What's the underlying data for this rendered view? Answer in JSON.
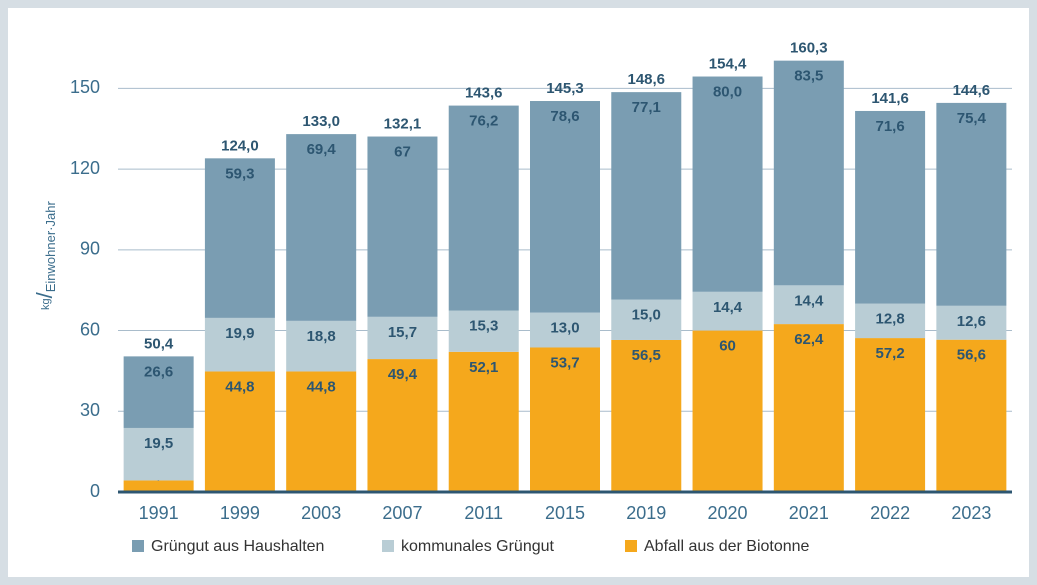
{
  "chart_data": {
    "type": "stacked_bar",
    "y_label": [
      "kg",
      "/",
      "Einwohner·Jahr"
    ],
    "categories": [
      "1991",
      "1999",
      "2003",
      "2007",
      "2011",
      "2015",
      "2019",
      "2020",
      "2021",
      "2022",
      "2023"
    ],
    "series": [
      {
        "name": "Abfall aus der Biotonne",
        "color": "#f5a81c",
        "values": [
          4.3,
          44.8,
          44.8,
          49.4,
          52.1,
          53.7,
          56.5,
          60,
          62.4,
          57.2,
          56.6
        ],
        "value_labels": [
          "4,3",
          "44,8",
          "44,8",
          "49,4",
          "52,1",
          "53,7",
          "56,5",
          "60",
          "62,4",
          "57,2",
          "56,6"
        ]
      },
      {
        "name": "kommunales Grüngut",
        "color": "#b9cdd5",
        "values": [
          19.5,
          19.9,
          18.8,
          15.7,
          15.3,
          13.0,
          15.0,
          14.4,
          14.4,
          12.8,
          12.6
        ],
        "value_labels": [
          "19,5",
          "19,9",
          "18,8",
          "15,7",
          "15,3",
          "13,0",
          "15,0",
          "14,4",
          "14,4",
          "12,8",
          "12,6"
        ]
      },
      {
        "name": "Grüngut aus Haushalten",
        "color": "#7a9db2",
        "values": [
          26.6,
          59.3,
          69.4,
          67,
          76.2,
          78.6,
          77.1,
          80.0,
          83.5,
          71.6,
          75.4
        ],
        "value_labels": [
          "26,6",
          "59,3",
          "69,4",
          "67",
          "76,2",
          "78,6",
          "77,1",
          "80,0",
          "83,5",
          "71,6",
          "75,4"
        ]
      }
    ],
    "totals": [
      50.4,
      124.0,
      133.0,
      132.1,
      143.6,
      145.3,
      148.6,
      154.4,
      160.3,
      141.6,
      144.6
    ],
    "total_labels": [
      "50,4",
      "124,0",
      "133,0",
      "132,1",
      "143,6",
      "145,3",
      "148,6",
      "154,4",
      "160,3",
      "141,6",
      "144,6"
    ],
    "legend_order": [
      2,
      1,
      0
    ],
    "ylim": [
      0,
      165
    ],
    "yticks": [
      0,
      30,
      60,
      90,
      120,
      150
    ],
    "grid": true,
    "legend": "bottom"
  }
}
